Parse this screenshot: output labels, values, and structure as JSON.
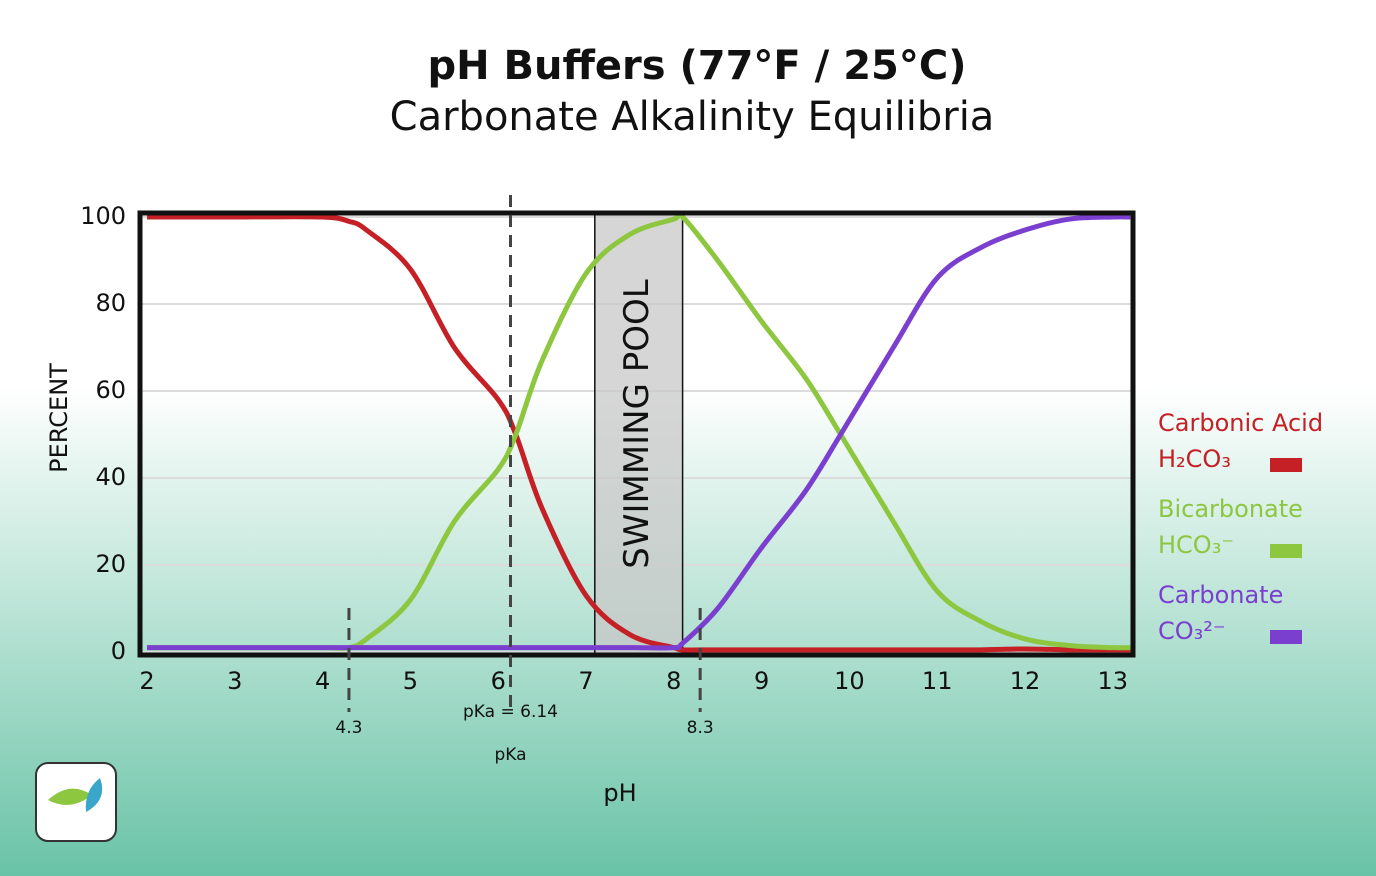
{
  "chart_data": {
    "type": "line",
    "title": "pH Buffers (77°F / 25°C)",
    "subtitle": "Carbonate Alkalinity Equilibria",
    "x_label": "pH",
    "y_label": "PERCENT",
    "x": [
      2,
      3,
      4,
      4.3,
      4.5,
      5,
      5.5,
      6,
      6.2,
      6.5,
      7,
      7.5,
      8,
      8.1,
      8.5,
      9,
      9.5,
      9.9,
      10.5,
      11,
      11.5,
      12,
      12.5,
      13,
      13.2
    ],
    "series": [
      {
        "name": "Carbonic Acid",
        "formula": "H₂CO₃",
        "color": "#c42026",
        "values": [
          100,
          100,
          100,
          99,
          97,
          88,
          70,
          58,
          50,
          33,
          13,
          4,
          1,
          0.5,
          0.5,
          0.5,
          0.5,
          0.5,
          0.5,
          0.5,
          0.5,
          0.7,
          0.5,
          0.5,
          0.5
        ]
      },
      {
        "name": "Bicarbonate",
        "formula": "HCO₃⁻",
        "color": "#8dc63f",
        "values": [
          1,
          1,
          1,
          1,
          3,
          12,
          30,
          42,
          50,
          67,
          87,
          96,
          99.5,
          100,
          90,
          76,
          63,
          50,
          30,
          14,
          7,
          3,
          1.5,
          1,
          1
        ]
      },
      {
        "name": "Carbonate",
        "formula": "CO₃²⁻",
        "color": "#7b3fd0",
        "values": [
          1,
          1,
          1,
          1,
          1,
          1,
          1,
          1,
          1,
          1,
          1,
          1,
          1,
          2,
          10,
          24,
          37,
          50,
          70,
          86,
          93,
          97,
          99.5,
          100,
          100
        ]
      }
    ],
    "xlim": [
      1.92,
      13.23
    ],
    "ylim": [
      0,
      100
    ],
    "xticks": [
      2,
      3,
      4,
      5,
      6,
      7,
      8,
      9,
      10,
      11,
      12,
      13
    ],
    "yticks": [
      0,
      20,
      40,
      60,
      80,
      100
    ],
    "grid": true,
    "pool": {
      "label": "SWIMMING POOL",
      "x": [
        7.1,
        8.1
      ]
    },
    "markers": [
      {
        "x": 4.3,
        "label": "4.3"
      },
      {
        "x": 6.14,
        "label": "pKa = 6.14",
        "note": "pKa"
      },
      {
        "x": 8.3,
        "label": "8.3"
      }
    ]
  }
}
